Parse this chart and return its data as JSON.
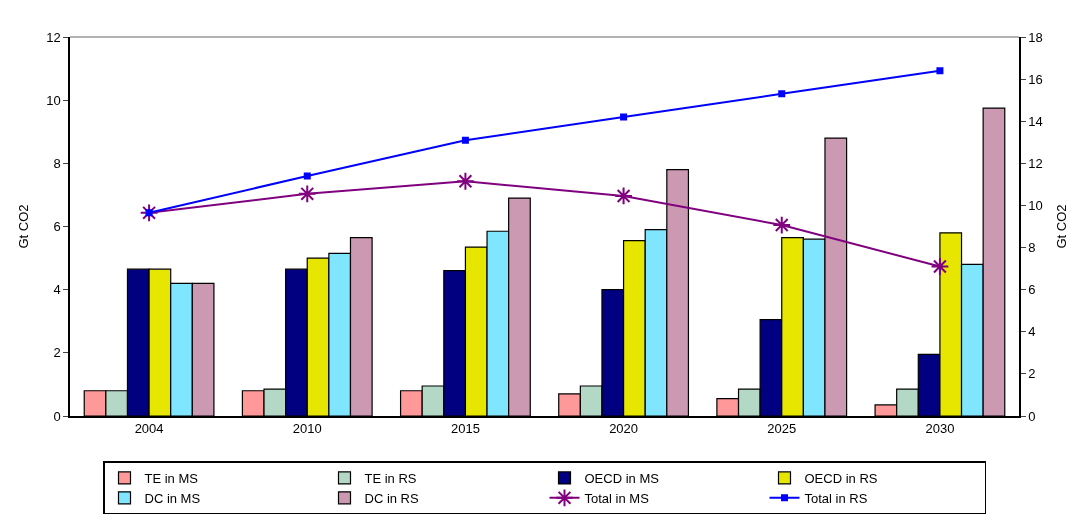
{
  "chart_data": {
    "type": "bar",
    "ylabel": "Gt CO2",
    "y2label": "Gt CO2",
    "categories": [
      "2004",
      "2010",
      "2015",
      "2020",
      "2025",
      "2030"
    ],
    "ylim": [
      0,
      12
    ],
    "yticks": [
      0,
      2,
      4,
      6,
      8,
      10,
      12
    ],
    "y2lim": [
      0,
      18
    ],
    "y2ticks": [
      0,
      2,
      4,
      6,
      8,
      10,
      12,
      14,
      16,
      18
    ],
    "legend": "bottom",
    "series": [
      {
        "name": "TE in MS",
        "color": "#ff9999",
        "values": [
          0.8,
          0.8,
          0.8,
          0.7,
          0.55,
          0.35
        ]
      },
      {
        "name": "TE in RS",
        "color": "#b3d9c6",
        "values": [
          0.8,
          0.85,
          0.95,
          0.95,
          0.85,
          0.85
        ]
      },
      {
        "name": "OECD in MS",
        "color": "#000080",
        "values": [
          4.65,
          4.65,
          4.6,
          4.0,
          3.05,
          1.95
        ]
      },
      {
        "name": "OECD in RS",
        "color": "#e6e600",
        "values": [
          4.65,
          5.0,
          5.35,
          5.55,
          5.65,
          5.8
        ]
      },
      {
        "name": "DC in MS",
        "color": "#80e5ff",
        "values": [
          4.2,
          5.15,
          5.85,
          5.9,
          5.6,
          4.8
        ]
      },
      {
        "name": "DC in RS",
        "color": "#cc99b3",
        "values": [
          4.2,
          5.65,
          6.9,
          7.8,
          8.8,
          9.75
        ]
      },
      {
        "name": "Total in MS",
        "type": "line",
        "axis": "y2",
        "marker": "cross",
        "color": "#800080",
        "values": [
          9.65,
          10.55,
          11.15,
          10.45,
          9.07,
          7.1
        ]
      },
      {
        "name": "Total in RS",
        "type": "line",
        "axis": "y2",
        "marker": "square",
        "color": "#0000ff",
        "values": [
          9.65,
          11.4,
          13.1,
          14.2,
          15.3,
          16.4
        ]
      }
    ]
  }
}
